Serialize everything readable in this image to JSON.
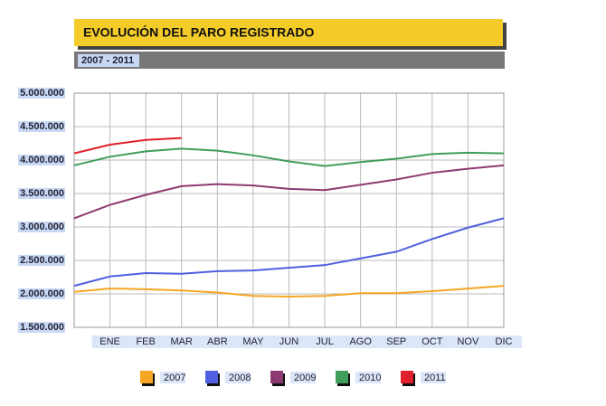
{
  "chart_data": {
    "type": "line",
    "title": "EVOLUCIÓN DEL PARO REGISTRADO",
    "subtitle": "2007 - 2011",
    "categories": [
      null,
      "ENE",
      "FEB",
      "MAR",
      "ABR",
      "MAY",
      "JUN",
      "JUL",
      "AGO",
      "SEP",
      "OCT",
      "NOV",
      "DIC"
    ],
    "series": [
      {
        "name": "2007",
        "color": "#f5a623",
        "values": [
          2030000,
          2080000,
          2070000,
          2050000,
          2020000,
          1970000,
          1960000,
          1970000,
          2010000,
          2010000,
          2040000,
          2080000,
          2120000
        ]
      },
      {
        "name": "2008",
        "color": "#5060e0",
        "values": [
          2120000,
          2260000,
          2310000,
          2300000,
          2340000,
          2350000,
          2390000,
          2430000,
          2530000,
          2630000,
          2820000,
          2990000,
          3130000
        ]
      },
      {
        "name": "2009",
        "color": "#8e3a72",
        "values": [
          3130000,
          3330000,
          3480000,
          3610000,
          3640000,
          3620000,
          3570000,
          3550000,
          3630000,
          3710000,
          3810000,
          3870000,
          3920000
        ]
      },
      {
        "name": "2010",
        "color": "#3f9e5a",
        "values": [
          3920000,
          4050000,
          4130000,
          4170000,
          4140000,
          4070000,
          3980000,
          3910000,
          3970000,
          4020000,
          4090000,
          4110000,
          4100000
        ]
      },
      {
        "name": "2011",
        "color": "#e0202a",
        "values": [
          4100000,
          4230000,
          4300000,
          4330000,
          null,
          null,
          null,
          null,
          null,
          null,
          null,
          null,
          null
        ]
      }
    ],
    "ylim": [
      1500000,
      5000000
    ],
    "yticks": [
      {
        "value": 1500000,
        "label": "1.500.000"
      },
      {
        "value": 2000000,
        "label": "2.000.000"
      },
      {
        "value": 2500000,
        "label": "2.500.000"
      },
      {
        "value": 3000000,
        "label": "3.000.000"
      },
      {
        "value": 3500000,
        "label": "3.500.000"
      },
      {
        "value": 4000000,
        "label": "4.000.000"
      },
      {
        "value": 4500000,
        "label": "4.500.000"
      },
      {
        "value": 5000000,
        "label": "5.000.000"
      }
    ],
    "grid": true
  }
}
